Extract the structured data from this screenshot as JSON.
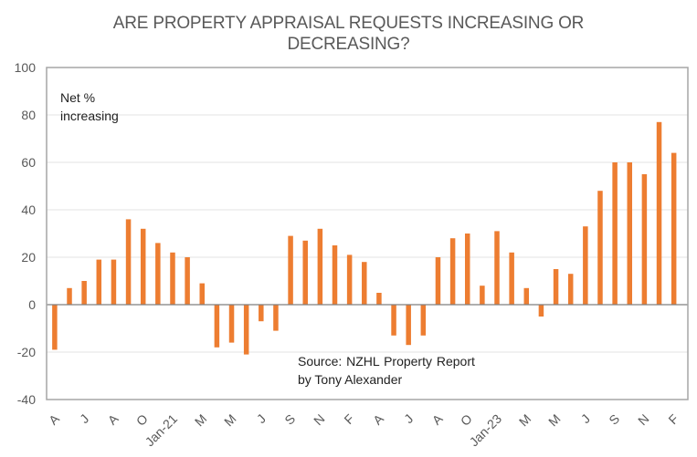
{
  "chart_data": {
    "type": "bar",
    "title_lines": [
      "ARE PROPERTY APPRAISAL REQUESTS INCREASING OR",
      "DECREASING?"
    ],
    "xlabel": "",
    "ylabel": "",
    "ylim": [
      -40,
      100
    ],
    "yticks": [
      100,
      80,
      60,
      40,
      20,
      0,
      -20,
      -40
    ],
    "grid": true,
    "color": "#ED7D31",
    "x_tick_labels": [
      "A",
      "J",
      "A",
      "O",
      "Jan-21",
      "M",
      "M",
      "J",
      "S",
      "N",
      "F",
      "A",
      "J",
      "A",
      "O",
      "Jan-23",
      "M",
      "M",
      "J",
      "S",
      "N",
      "F"
    ],
    "values": [
      -19,
      7,
      10,
      19,
      19,
      36,
      32,
      26,
      22,
      20,
      9,
      -18,
      -16,
      -21,
      -7,
      -11,
      29,
      27,
      32,
      25,
      21,
      18,
      5,
      -13,
      -17,
      -13,
      20,
      28,
      30,
      8,
      31,
      22,
      7,
      -5,
      15,
      13,
      33,
      48,
      60,
      60,
      55,
      77,
      64
    ],
    "annotations": [
      {
        "lines": [
          "Net %",
          "increasing"
        ],
        "position": "top-left"
      },
      {
        "lines": [
          "Source: NZHL  Property Report",
          "by Tony Alexander"
        ],
        "position": "bottom-center"
      }
    ]
  }
}
